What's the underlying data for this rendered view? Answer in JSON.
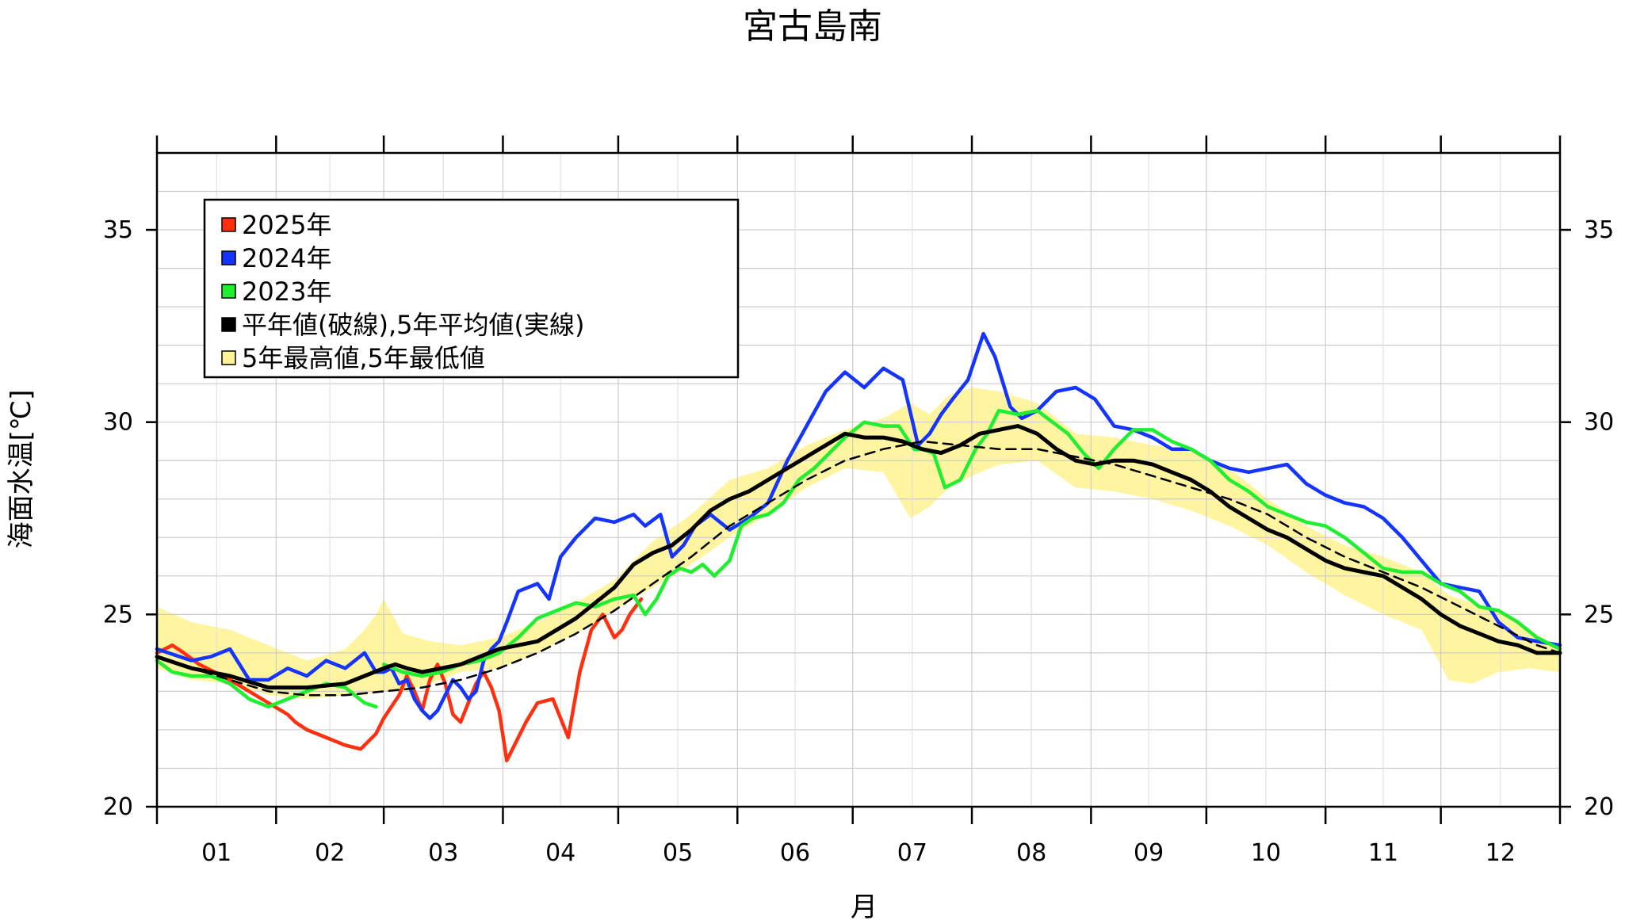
{
  "chart_data": {
    "type": "line",
    "title": "宮古島南",
    "xlabel": "月",
    "ylabel": "海面水温[℃]",
    "x_unit": "day-of-year",
    "xlim": [
      1,
      366
    ],
    "ylim": [
      20,
      37
    ],
    "y_ticks": [
      20,
      25,
      30,
      35
    ],
    "y_tick_labels": [
      "20",
      "25",
      "30",
      "35"
    ],
    "month_labels": [
      "01",
      "02",
      "03",
      "04",
      "05",
      "06",
      "07",
      "08",
      "09",
      "10",
      "11",
      "12"
    ],
    "month_starts": [
      1,
      32,
      60,
      91,
      121,
      152,
      182,
      213,
      244,
      274,
      305,
      335
    ],
    "grid": true,
    "legend_position": "top-left",
    "legend": [
      {
        "label": "2025年",
        "color": "#ff3010"
      },
      {
        "label": "2024年",
        "color": "#1535ff"
      },
      {
        "label": "2023年",
        "color": "#20ee30"
      },
      {
        "label": "平年値(破線),5年平均値(実線)",
        "color": "#000000"
      },
      {
        "label": "5年最高値,5年最低値",
        "color": "#fff39a"
      }
    ],
    "band": {
      "x": [
        1,
        10,
        20,
        30,
        40,
        50,
        55,
        58,
        60,
        65,
        72,
        80,
        90,
        100,
        110,
        120,
        130,
        140,
        150,
        160,
        170,
        180,
        190,
        197,
        202,
        207,
        213,
        220,
        230,
        240,
        250,
        260,
        270,
        280,
        290,
        300,
        310,
        320,
        330,
        337,
        343,
        350,
        358,
        366
      ],
      "upper": [
        25.2,
        24.8,
        24.6,
        24.2,
        23.8,
        24.1,
        24.6,
        25.0,
        25.4,
        24.5,
        24.3,
        24.2,
        24.4,
        24.8,
        25.3,
        25.9,
        26.9,
        27.6,
        28.5,
        28.8,
        29.4,
        29.8,
        30.1,
        30.5,
        30.2,
        30.7,
        30.9,
        30.8,
        30.5,
        29.7,
        29.6,
        29.4,
        29.3,
        28.8,
        28.0,
        27.3,
        26.8,
        26.5,
        26.1,
        25.5,
        25.3,
        25.1,
        24.6,
        24.1
      ],
      "lower": [
        23.6,
        23.3,
        23.2,
        22.9,
        22.8,
        22.9,
        22.9,
        23.0,
        23.0,
        23.0,
        23.2,
        23.5,
        23.6,
        24.0,
        24.5,
        25.1,
        25.7,
        26.3,
        27.0,
        27.6,
        28.3,
        28.8,
        28.7,
        27.5,
        27.8,
        28.3,
        28.6,
        28.9,
        29.0,
        28.3,
        28.2,
        28.0,
        27.7,
        27.3,
        26.8,
        26.1,
        25.5,
        25.0,
        24.6,
        23.3,
        23.2,
        23.5,
        23.6,
        23.5
      ]
    },
    "series": [
      {
        "name": "2025年",
        "color": "#ff3010",
        "x": [
          1,
          5,
          8,
          12,
          16,
          20,
          25,
          30,
          35,
          37,
          40,
          45,
          50,
          54,
          58,
          60,
          62,
          64,
          66,
          68,
          70,
          72,
          74,
          76,
          78,
          80,
          82,
          84,
          86,
          88,
          90,
          92,
          94,
          97,
          100,
          104,
          108,
          111,
          114,
          117,
          120,
          122,
          124,
          127
        ],
        "y": [
          24.0,
          24.2,
          24.0,
          23.7,
          23.5,
          23.3,
          23.0,
          22.7,
          22.4,
          22.2,
          22.0,
          21.8,
          21.6,
          21.5,
          21.9,
          22.3,
          22.6,
          22.9,
          23.4,
          23.0,
          22.5,
          23.3,
          23.7,
          23.2,
          22.4,
          22.2,
          22.7,
          23.2,
          23.5,
          23.1,
          22.5,
          21.2,
          21.6,
          22.2,
          22.7,
          22.8,
          21.8,
          23.5,
          24.6,
          25.0,
          24.4,
          24.6,
          25.0,
          25.4
        ]
      },
      {
        "name": "2024年",
        "color": "#1535ff",
        "x": [
          1,
          10,
          15,
          20,
          25,
          30,
          35,
          40,
          45,
          50,
          55,
          58,
          60,
          62,
          64,
          66,
          68,
          70,
          72,
          74,
          76,
          78,
          80,
          82,
          84,
          86,
          88,
          90,
          92,
          95,
          100,
          103,
          106,
          110,
          115,
          120,
          125,
          128,
          132,
          135,
          138,
          141,
          145,
          150,
          155,
          160,
          165,
          170,
          175,
          180,
          185,
          190,
          195,
          199,
          202,
          205,
          208,
          212,
          216,
          219,
          223,
          226,
          230,
          235,
          240,
          245,
          250,
          255,
          260,
          265,
          270,
          275,
          280,
          285,
          290,
          295,
          300,
          305,
          310,
          315,
          320,
          325,
          330,
          335,
          340,
          345,
          350,
          355,
          360,
          366
        ],
        "y": [
          24.1,
          23.8,
          23.9,
          24.1,
          23.3,
          23.3,
          23.6,
          23.4,
          23.8,
          23.6,
          24.0,
          23.5,
          23.5,
          23.6,
          23.2,
          23.3,
          22.8,
          22.5,
          22.3,
          22.5,
          22.9,
          23.3,
          23.1,
          22.8,
          23.0,
          23.8,
          24.1,
          24.3,
          24.8,
          25.6,
          25.8,
          25.4,
          26.5,
          27.0,
          27.5,
          27.4,
          27.6,
          27.3,
          27.6,
          26.5,
          26.8,
          27.3,
          27.6,
          27.2,
          27.5,
          27.9,
          29.0,
          29.9,
          30.8,
          31.3,
          30.9,
          31.4,
          31.1,
          29.4,
          29.7,
          30.2,
          30.6,
          31.1,
          32.3,
          31.7,
          30.4,
          30.1,
          30.3,
          30.8,
          30.9,
          30.6,
          29.9,
          29.8,
          29.6,
          29.3,
          29.3,
          29.0,
          28.8,
          28.7,
          28.8,
          28.9,
          28.4,
          28.1,
          27.9,
          27.8,
          27.5,
          27.0,
          26.4,
          25.8,
          25.7,
          25.6,
          24.8,
          24.4,
          24.3,
          24.2
        ]
      },
      {
        "name": "2023年",
        "color": "#20ee30",
        "x": [
          1,
          5,
          10,
          15,
          20,
          25,
          30,
          35,
          40,
          45,
          50,
          55,
          58
        ],
        "y": [
          23.8,
          23.5,
          23.4,
          23.4,
          23.2,
          22.8,
          22.6,
          22.8,
          23.0,
          23.2,
          23.1,
          22.7,
          22.6
        ]
      },
      {
        "name": "2023年",
        "color": "#20ee30",
        "x": [
          60,
          65,
          70,
          75,
          80,
          85,
          90,
          95,
          100,
          105,
          110,
          115,
          120,
          125,
          128,
          131,
          134,
          137,
          140,
          143,
          146,
          150,
          153,
          156,
          160,
          164,
          168,
          172,
          176,
          180,
          185,
          190,
          194,
          198,
          200,
          203,
          206,
          210,
          214,
          217,
          220,
          225,
          230,
          234,
          238,
          242,
          246,
          250,
          255,
          260,
          265,
          270,
          275,
          280,
          285,
          290,
          295,
          300,
          305,
          310,
          315,
          320,
          325,
          330,
          335,
          340,
          345,
          350,
          355,
          360,
          366
        ],
        "y": [
          23.7,
          23.5,
          23.4,
          23.5,
          23.7,
          23.8,
          24.0,
          24.4,
          24.9,
          25.1,
          25.3,
          25.2,
          25.4,
          25.5,
          25.0,
          25.4,
          26.0,
          26.2,
          26.1,
          26.3,
          26.0,
          26.4,
          27.3,
          27.5,
          27.6,
          27.9,
          28.5,
          28.8,
          29.2,
          29.6,
          30.0,
          29.9,
          29.9,
          29.3,
          29.3,
          29.2,
          28.3,
          28.5,
          29.3,
          29.7,
          30.3,
          30.2,
          30.3,
          30.0,
          29.7,
          29.2,
          28.8,
          29.3,
          29.8,
          29.8,
          29.5,
          29.3,
          29.0,
          28.5,
          28.2,
          27.8,
          27.6,
          27.4,
          27.3,
          27.0,
          26.6,
          26.2,
          26.1,
          26.1,
          25.8,
          25.6,
          25.2,
          25.1,
          24.8,
          24.4,
          24.1
        ]
      },
      {
        "name": "5年平均値",
        "color": "#000000",
        "x": [
          1,
          10,
          20,
          30,
          40,
          50,
          55,
          60,
          63,
          66,
          70,
          75,
          80,
          85,
          90,
          95,
          100,
          105,
          110,
          115,
          120,
          125,
          130,
          135,
          140,
          145,
          150,
          155,
          160,
          165,
          170,
          175,
          180,
          185,
          190,
          195,
          200,
          205,
          210,
          215,
          220,
          225,
          230,
          235,
          240,
          245,
          250,
          255,
          260,
          265,
          270,
          275,
          280,
          285,
          290,
          295,
          300,
          305,
          310,
          315,
          320,
          325,
          330,
          335,
          340,
          345,
          350,
          355,
          360,
          366
        ],
        "y": [
          23.9,
          23.6,
          23.4,
          23.1,
          23.1,
          23.2,
          23.4,
          23.6,
          23.7,
          23.6,
          23.5,
          23.6,
          23.7,
          23.9,
          24.1,
          24.2,
          24.3,
          24.6,
          24.9,
          25.3,
          25.7,
          26.3,
          26.6,
          26.8,
          27.2,
          27.7,
          28.0,
          28.2,
          28.5,
          28.8,
          29.1,
          29.4,
          29.7,
          29.6,
          29.6,
          29.5,
          29.3,
          29.2,
          29.4,
          29.7,
          29.8,
          29.9,
          29.7,
          29.3,
          29.0,
          28.9,
          29.0,
          29.0,
          28.9,
          28.7,
          28.5,
          28.2,
          27.8,
          27.5,
          27.2,
          27.0,
          26.7,
          26.4,
          26.2,
          26.1,
          26.0,
          25.7,
          25.4,
          25.0,
          24.7,
          24.5,
          24.3,
          24.2,
          24.0,
          24.0
        ]
      },
      {
        "name": "平年値",
        "color": "#000000",
        "x": [
          1,
          10,
          20,
          30,
          40,
          50,
          60,
          70,
          80,
          90,
          100,
          110,
          120,
          130,
          140,
          150,
          160,
          170,
          180,
          190,
          200,
          210,
          220,
          230,
          240,
          250,
          260,
          270,
          280,
          290,
          300,
          310,
          320,
          330,
          340,
          350,
          360,
          366
        ],
        "y": [
          23.9,
          23.6,
          23.3,
          23.0,
          22.9,
          22.9,
          23.0,
          23.1,
          23.3,
          23.6,
          24.0,
          24.5,
          25.1,
          25.8,
          26.5,
          27.3,
          27.9,
          28.5,
          29.0,
          29.3,
          29.5,
          29.4,
          29.3,
          29.3,
          29.1,
          28.9,
          28.6,
          28.3,
          28.0,
          27.6,
          27.0,
          26.5,
          26.1,
          25.7,
          25.2,
          24.7,
          24.2,
          24.0
        ]
      }
    ]
  }
}
